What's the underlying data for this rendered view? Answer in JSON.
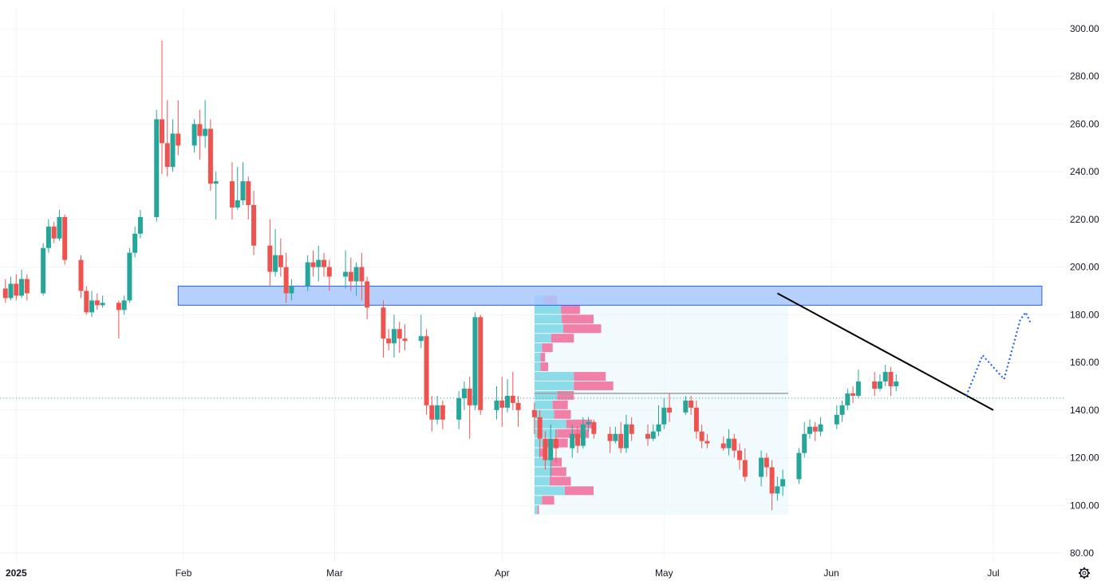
{
  "colors": {
    "up": "#26a69a",
    "down": "#ef5350",
    "grid": "#f0f3fa",
    "zone_fill": "#a8c8fb",
    "zone_border": "#2962ff",
    "trendline": "#000000",
    "projection": "#2962ff",
    "price_line": "#26a69a",
    "vp_up": "#7fd8e6",
    "vp_down": "#f06292",
    "vp_range_bg": "#e8f6fb",
    "poc": "#9e9e9e"
  },
  "settings_icon": "gear-icon",
  "chart_data": {
    "type": "candlestick",
    "y_axis": {
      "ticks": [
        "300.00",
        "280.00",
        "260.00",
        "240.00",
        "220.00",
        "200.00",
        "180.00",
        "160.00",
        "140.00",
        "120.00",
        "100.00",
        "80.00"
      ],
      "min": 77,
      "max": 305,
      "position": "right"
    },
    "x_axis": {
      "labels": [
        {
          "text": "2025",
          "date": "2025-01-01",
          "bold": true
        },
        {
          "text": "Feb",
          "date": "2025-02-01"
        },
        {
          "text": "Mar",
          "date": "2025-03-01"
        },
        {
          "text": "Apr",
          "date": "2025-04-01"
        },
        {
          "text": "May",
          "date": "2025-05-01"
        },
        {
          "text": "Jun",
          "date": "2025-06-01"
        },
        {
          "text": "Jul",
          "date": "2025-07-01"
        }
      ],
      "start": "2024-12-29",
      "end": "2025-07-14"
    },
    "grid": true,
    "current_price_line": 145,
    "candles": [
      [
        "2024-12-30",
        191,
        187,
        195,
        185
      ],
      [
        "2024-12-31",
        187,
        193,
        196,
        186
      ],
      [
        "2025-01-01",
        193,
        188,
        197,
        186
      ],
      [
        "2025-01-02",
        188,
        195,
        199,
        187
      ],
      [
        "2025-01-03",
        195,
        189,
        197,
        186
      ],
      [
        "2025-01-06",
        189,
        208,
        210,
        188
      ],
      [
        "2025-01-07",
        208,
        217,
        220,
        206
      ],
      [
        "2025-01-08",
        217,
        212,
        219,
        210
      ],
      [
        "2025-01-09",
        212,
        221,
        224,
        211
      ],
      [
        "2025-01-10",
        221,
        203,
        222,
        201
      ],
      [
        "2025-01-13",
        203,
        190,
        205,
        187
      ],
      [
        "2025-01-14",
        190,
        181,
        192,
        180
      ],
      [
        "2025-01-15",
        181,
        186,
        190,
        179
      ],
      [
        "2025-01-16",
        186,
        184,
        189,
        182
      ],
      [
        "2025-01-17",
        184,
        185,
        188,
        183
      ],
      [
        "2025-01-20",
        185,
        182,
        186,
        170
      ],
      [
        "2025-01-21",
        182,
        186,
        188,
        180
      ],
      [
        "2025-01-22",
        186,
        206,
        208,
        185
      ],
      [
        "2025-01-23",
        206,
        214,
        217,
        204
      ],
      [
        "2025-01-24",
        214,
        221,
        224,
        212
      ],
      [
        "2025-01-27",
        221,
        262,
        266,
        219
      ],
      [
        "2025-01-28",
        262,
        252,
        295,
        239
      ],
      [
        "2025-01-29",
        252,
        242,
        270,
        238
      ],
      [
        "2025-01-30",
        242,
        256,
        262,
        240
      ],
      [
        "2025-01-31",
        256,
        251,
        270,
        247
      ],
      [
        "2025-02-03",
        251,
        260,
        262,
        248
      ],
      [
        "2025-02-04",
        260,
        255,
        266,
        245
      ],
      [
        "2025-02-05",
        255,
        258,
        270,
        250
      ],
      [
        "2025-02-06",
        258,
        235,
        262,
        232
      ],
      [
        "2025-02-07",
        235,
        236,
        240,
        220
      ],
      [
        "2025-02-10",
        236,
        225,
        244,
        220
      ],
      [
        "2025-02-11",
        225,
        228,
        242,
        224
      ],
      [
        "2025-02-12",
        228,
        236,
        244,
        226
      ],
      [
        "2025-02-13",
        236,
        226,
        238,
        220
      ],
      [
        "2025-02-14",
        226,
        209,
        232,
        205
      ],
      [
        "2025-02-17",
        209,
        198,
        220,
        192
      ],
      [
        "2025-02-18",
        198,
        205,
        216,
        196
      ],
      [
        "2025-02-19",
        205,
        200,
        212,
        196
      ],
      [
        "2025-02-20",
        200,
        189,
        206,
        185
      ],
      [
        "2025-02-21",
        189,
        192,
        195,
        186
      ],
      [
        "2025-02-24",
        192,
        202,
        205,
        190
      ],
      [
        "2025-02-25",
        202,
        200,
        207,
        196
      ],
      [
        "2025-02-26",
        200,
        203,
        209,
        194
      ],
      [
        "2025-02-27",
        203,
        200,
        206,
        196
      ],
      [
        "2025-02-28",
        200,
        196,
        203,
        190
      ],
      [
        "2025-03-03",
        196,
        198,
        207,
        191
      ],
      [
        "2025-03-04",
        198,
        194,
        204,
        190
      ],
      [
        "2025-03-05",
        194,
        200,
        202,
        188
      ],
      [
        "2025-03-06",
        200,
        194,
        206,
        186
      ],
      [
        "2025-03-07",
        194,
        183,
        196,
        178
      ],
      [
        "2025-03-10",
        183,
        170,
        186,
        162
      ],
      [
        "2025-03-11",
        170,
        168,
        174,
        165
      ],
      [
        "2025-03-12",
        168,
        174,
        180,
        162
      ],
      [
        "2025-03-13",
        174,
        170,
        177,
        164
      ],
      [
        "2025-03-14",
        170,
        169,
        176,
        165
      ],
      [
        "2025-03-17",
        169,
        171,
        180,
        166
      ],
      [
        "2025-03-18",
        171,
        142,
        174,
        138
      ],
      [
        "2025-03-19",
        142,
        136,
        146,
        131
      ],
      [
        "2025-03-20",
        136,
        142,
        146,
        134
      ],
      [
        "2025-03-21",
        142,
        136,
        144,
        132
      ],
      [
        "2025-03-24",
        136,
        145,
        148,
        132
      ],
      [
        "2025-03-25",
        145,
        149,
        152,
        140
      ],
      [
        "2025-03-26",
        149,
        142,
        154,
        128
      ],
      [
        "2025-03-27",
        142,
        179,
        181,
        140
      ],
      [
        "2025-03-28",
        179,
        140,
        180,
        138
      ],
      [
        "2025-03-31",
        140,
        144,
        150,
        136
      ],
      [
        "2025-04-01",
        144,
        141,
        154,
        133
      ],
      [
        "2025-04-02",
        141,
        146,
        153,
        139
      ],
      [
        "2025-04-03",
        146,
        143,
        156,
        140
      ],
      [
        "2025-04-04",
        143,
        140,
        146,
        133
      ],
      [
        "2025-04-07",
        140,
        137,
        143,
        130
      ],
      [
        "2025-04-08",
        137,
        128,
        140,
        120
      ],
      [
        "2025-04-09",
        128,
        119,
        131,
        115
      ],
      [
        "2025-04-10",
        119,
        128,
        134,
        112
      ],
      [
        "2025-04-11",
        128,
        124,
        132,
        118
      ],
      [
        "2025-04-14",
        124,
        130,
        134,
        120
      ],
      [
        "2025-04-15",
        130,
        125,
        133,
        122
      ],
      [
        "2025-04-16",
        125,
        134,
        137,
        124
      ],
      [
        "2025-04-17",
        134,
        135,
        137,
        131
      ],
      [
        "2025-04-18",
        135,
        130,
        136,
        128
      ],
      [
        "2025-04-21",
        130,
        127,
        133,
        122
      ],
      [
        "2025-04-22",
        127,
        130,
        133,
        126
      ],
      [
        "2025-04-23",
        130,
        124,
        135,
        122
      ],
      [
        "2025-04-24",
        124,
        134,
        138,
        122
      ],
      [
        "2025-04-25",
        134,
        130,
        137,
        127
      ],
      [
        "2025-04-28",
        130,
        128,
        134,
        125
      ],
      [
        "2025-04-29",
        128,
        131,
        134,
        127
      ],
      [
        "2025-04-30",
        131,
        134,
        142,
        129
      ],
      [
        "2025-05-01",
        134,
        141,
        145,
        132
      ],
      [
        "2025-05-02",
        141,
        139,
        147,
        135
      ],
      [
        "2025-05-05",
        139,
        144,
        146,
        138
      ],
      [
        "2025-05-06",
        144,
        141,
        146,
        138
      ],
      [
        "2025-05-07",
        141,
        131,
        144,
        128
      ],
      [
        "2025-05-08",
        131,
        127,
        134,
        124
      ],
      [
        "2025-05-09",
        127,
        126,
        130,
        124
      ],
      [
        "2025-05-12",
        126,
        124,
        129,
        123
      ],
      [
        "2025-05-13",
        124,
        128,
        132,
        121
      ],
      [
        "2025-05-14",
        128,
        123,
        130,
        120
      ],
      [
        "2025-05-15",
        123,
        119,
        126,
        115
      ],
      [
        "2025-05-16",
        119,
        112,
        124,
        110
      ],
      [
        "2025-05-19",
        112,
        120,
        123,
        108
      ],
      [
        "2025-05-20",
        120,
        116,
        122,
        112
      ],
      [
        "2025-05-21",
        116,
        105,
        119,
        98
      ],
      [
        "2025-05-22",
        105,
        108,
        112,
        102
      ],
      [
        "2025-05-23",
        108,
        111,
        115,
        104
      ],
      [
        "2025-05-26",
        111,
        122,
        124,
        109
      ],
      [
        "2025-05-27",
        122,
        130,
        135,
        120
      ],
      [
        "2025-05-28",
        130,
        133,
        136,
        128
      ],
      [
        "2025-05-29",
        133,
        131,
        135,
        127
      ],
      [
        "2025-05-30",
        131,
        134,
        137,
        129
      ],
      [
        "2025-06-02",
        134,
        138,
        142,
        132
      ],
      [
        "2025-06-03",
        138,
        142,
        144,
        135
      ],
      [
        "2025-06-04",
        142,
        147,
        149,
        140
      ],
      [
        "2025-06-05",
        147,
        146,
        150,
        143
      ],
      [
        "2025-06-06",
        146,
        152,
        157,
        145
      ],
      [
        "2025-06-09",
        152,
        149,
        156,
        146
      ],
      [
        "2025-06-10",
        149,
        152,
        155,
        148
      ],
      [
        "2025-06-11",
        152,
        156,
        159,
        150
      ],
      [
        "2025-06-12",
        156,
        150,
        158,
        146
      ],
      [
        "2025-06-13",
        150,
        152,
        155,
        148
      ]
    ],
    "candles_note_hidden": true,
    "zone": {
      "top": 192,
      "bottom": 184,
      "start": "2025-01-31",
      "end": "2025-07-10"
    },
    "trendline": {
      "start": [
        "2025-05-22",
        189
      ],
      "end": [
        "2025-07-01",
        140
      ]
    },
    "projection": [
      [
        "2025-06-26",
        146
      ],
      [
        "2025-06-29",
        163
      ],
      [
        "2025-07-03",
        153
      ],
      [
        "2025-07-06",
        178
      ],
      [
        "2025-07-07",
        181
      ],
      [
        "2025-07-08",
        176
      ]
    ],
    "volume_profile": {
      "start": "2025-04-07",
      "end": "2025-05-24",
      "low": 96,
      "high": 188,
      "poc": 147,
      "rows": [
        {
          "price": 186,
          "up": 0.12,
          "down": 0.18
        },
        {
          "price": 182,
          "up": 0.35,
          "down": 0.25
        },
        {
          "price": 178,
          "up": 0.36,
          "down": 0.42
        },
        {
          "price": 174,
          "up": 0.38,
          "down": 0.5
        },
        {
          "price": 170,
          "up": 0.22,
          "down": 0.3
        },
        {
          "price": 166,
          "up": 0.1,
          "down": 0.14
        },
        {
          "price": 162,
          "up": 0.08,
          "down": 0.06
        },
        {
          "price": 158,
          "up": 0.08,
          "down": 0.1
        },
        {
          "price": 154,
          "up": 0.52,
          "down": 0.42
        },
        {
          "price": 150,
          "up": 0.52,
          "down": 0.52
        },
        {
          "price": 146,
          "up": 0.3,
          "down": 0.22
        },
        {
          "price": 142,
          "up": 0.24,
          "down": 0.2
        },
        {
          "price": 138,
          "up": 0.26,
          "down": 0.22
        },
        {
          "price": 134,
          "up": 0.42,
          "down": 0.34
        },
        {
          "price": 130,
          "up": 0.3,
          "down": 0.42
        },
        {
          "price": 126,
          "up": 0.16,
          "down": 0.28
        },
        {
          "price": 122,
          "up": 0.08,
          "down": 0.06
        },
        {
          "price": 118,
          "up": 0.22,
          "down": 0.14
        },
        {
          "price": 114,
          "up": 0.22,
          "down": 0.2
        },
        {
          "price": 110,
          "up": 0.2,
          "down": 0.28
        },
        {
          "price": 106,
          "up": 0.4,
          "down": 0.38
        },
        {
          "price": 102,
          "up": 0.1,
          "down": 0.16
        },
        {
          "price": 98,
          "up": 0.04,
          "down": 0.02
        }
      ]
    }
  }
}
